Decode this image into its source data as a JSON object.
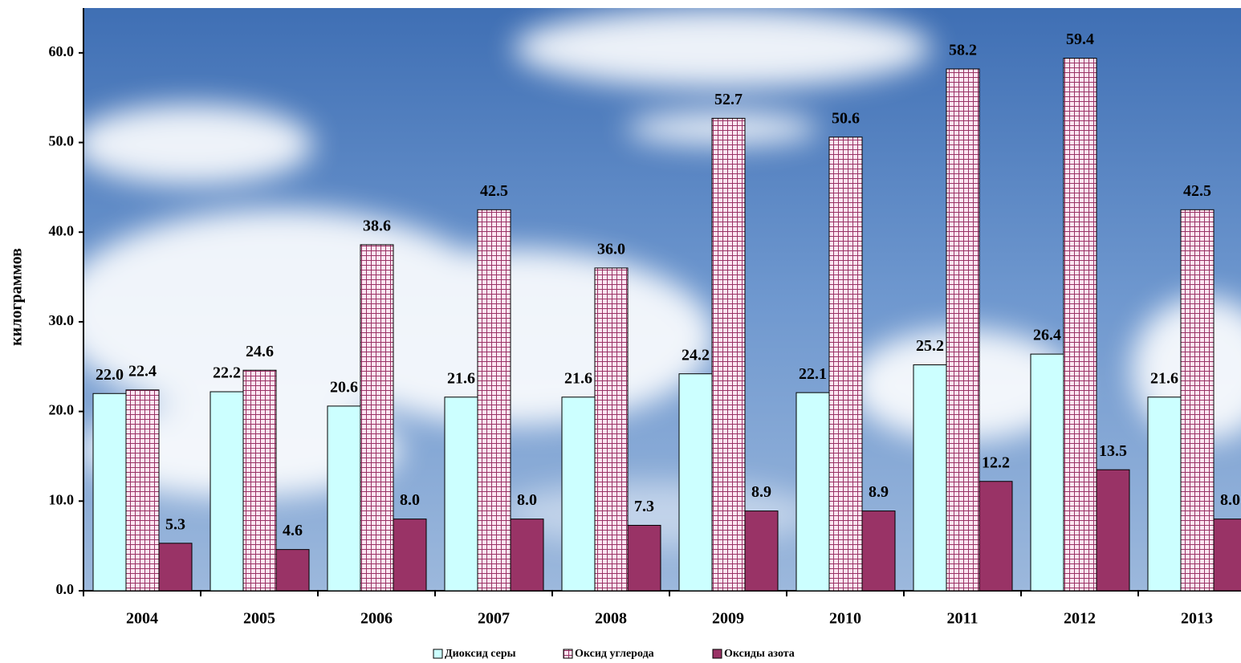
{
  "chart_data": {
    "type": "bar",
    "y_label": "килограммов",
    "categories": [
      "2004",
      "2005",
      "2006",
      "2007",
      "2008",
      "2009",
      "2010",
      "2011",
      "2012",
      "2013"
    ],
    "series": [
      {
        "name": "Диоксид серы",
        "color": "#ccffff",
        "values": [
          22.0,
          22.2,
          20.6,
          21.6,
          21.6,
          24.2,
          22.1,
          25.2,
          26.4,
          21.6
        ],
        "value_labels": [
          "22.0",
          "22.2",
          "20.6",
          "21.6",
          "21.6",
          "24.2",
          "22.1",
          "25.2",
          "26.4",
          "21.6"
        ]
      },
      {
        "name": "Оксид углерода",
        "color": "#993366",
        "pattern": "grid",
        "values": [
          22.4,
          24.6,
          38.6,
          42.5,
          36.0,
          52.7,
          50.6,
          58.2,
          59.4,
          42.5
        ],
        "value_labels": [
          "22.4",
          "24.6",
          "38.6",
          "42.5",
          "36.0",
          "52.7",
          "50.6",
          "58.2",
          "59.4",
          "42.5"
        ]
      },
      {
        "name": "Оксиды азота",
        "color": "#993366",
        "values": [
          5.3,
          4.6,
          8.0,
          8.0,
          7.3,
          8.9,
          8.9,
          12.2,
          13.5,
          8.0
        ],
        "value_labels": [
          "5.3",
          "4.6",
          "8.0",
          "8.0",
          "7.3",
          "8.9",
          "8.9",
          "12.2",
          "13.5",
          "8.0"
        ]
      }
    ],
    "ylim": [
      0,
      65
    ],
    "yticks": [
      {
        "value": 0,
        "label": "0.0"
      },
      {
        "value": 10,
        "label": "10.0"
      },
      {
        "value": 20,
        "label": "20.0"
      },
      {
        "value": 30,
        "label": "30.0"
      },
      {
        "value": 40,
        "label": "40.0"
      },
      {
        "value": 50,
        "label": "50.0"
      },
      {
        "value": 60,
        "label": "60.0"
      }
    ],
    "legend": "bottom"
  }
}
